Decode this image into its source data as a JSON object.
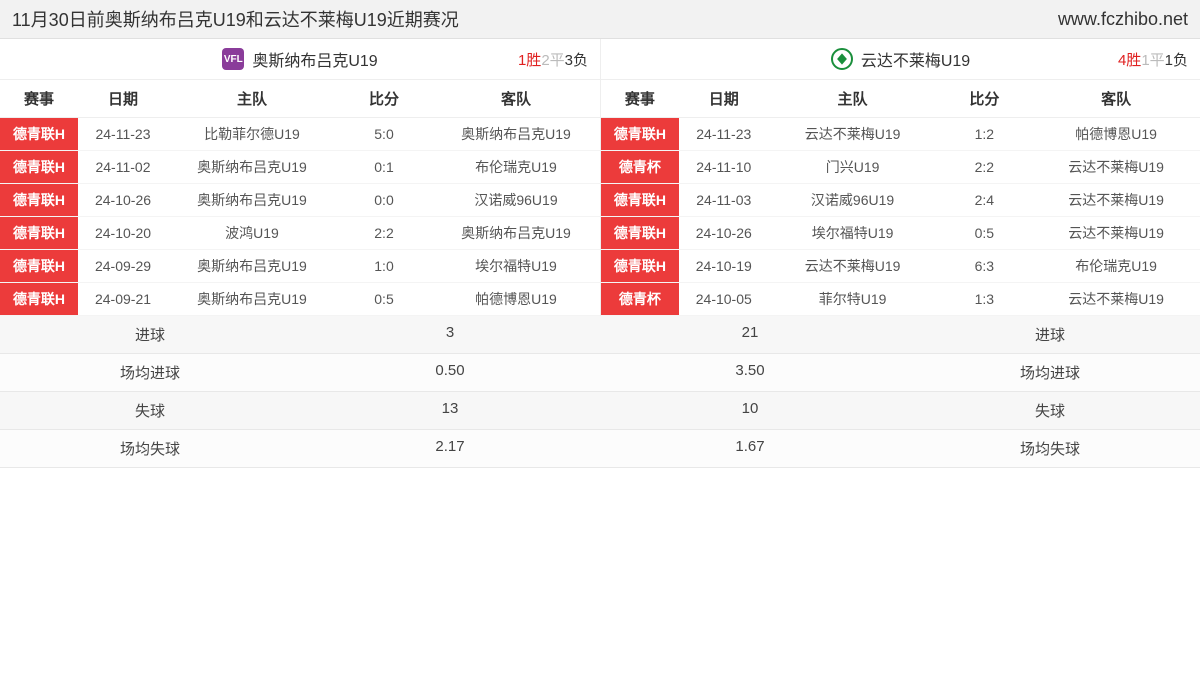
{
  "header": {
    "title": "11月30日前奥斯纳布吕克U19和云达不莱梅U19近期赛况",
    "site": "www.fczhibo.net"
  },
  "columns": [
    "赛事",
    "日期",
    "主队",
    "比分",
    "客队"
  ],
  "colors": {
    "comp_bg": "#ec3b3b",
    "comp_fg": "#ffffff",
    "win": "#e02020",
    "draw": "#bbbbbb",
    "loss": "#333333",
    "header_bg": "#f2f2f2"
  },
  "left": {
    "team": "奥斯纳布吕克U19",
    "logo_text": "VFL",
    "record": {
      "win_label": "1胜",
      "draw_label": "2平",
      "loss_label": "3负"
    },
    "matches": [
      {
        "comp": "德青联H",
        "date": "24-11-23",
        "home": "比勒菲尔德U19",
        "score": "5:0",
        "away": "奥斯纳布吕克U19"
      },
      {
        "comp": "德青联H",
        "date": "24-11-02",
        "home": "奥斯纳布吕克U19",
        "score": "0:1",
        "away": "布伦瑞克U19"
      },
      {
        "comp": "德青联H",
        "date": "24-10-26",
        "home": "奥斯纳布吕克U19",
        "score": "0:0",
        "away": "汉诺威96U19"
      },
      {
        "comp": "德青联H",
        "date": "24-10-20",
        "home": "波鸿U19",
        "score": "2:2",
        "away": "奥斯纳布吕克U19"
      },
      {
        "comp": "德青联H",
        "date": "24-09-29",
        "home": "奥斯纳布吕克U19",
        "score": "1:0",
        "away": "埃尔福特U19"
      },
      {
        "comp": "德青联H",
        "date": "24-09-21",
        "home": "奥斯纳布吕克U19",
        "score": "0:5",
        "away": "帕德博恩U19"
      }
    ],
    "stats": [
      {
        "label": "进球",
        "value": "3"
      },
      {
        "label": "场均进球",
        "value": "0.50"
      },
      {
        "label": "失球",
        "value": "13"
      },
      {
        "label": "场均失球",
        "value": "2.17"
      }
    ]
  },
  "right": {
    "team": "云达不莱梅U19",
    "record": {
      "win_label": "4胜",
      "draw_label": "1平",
      "loss_label": "1负"
    },
    "matches": [
      {
        "comp": "德青联H",
        "date": "24-11-23",
        "home": "云达不莱梅U19",
        "score": "1:2",
        "away": "帕德博恩U19"
      },
      {
        "comp": "德青杯",
        "date": "24-11-10",
        "home": "门兴U19",
        "score": "2:2",
        "away": "云达不莱梅U19"
      },
      {
        "comp": "德青联H",
        "date": "24-11-03",
        "home": "汉诺威96U19",
        "score": "2:4",
        "away": "云达不莱梅U19"
      },
      {
        "comp": "德青联H",
        "date": "24-10-26",
        "home": "埃尔福特U19",
        "score": "0:5",
        "away": "云达不莱梅U19"
      },
      {
        "comp": "德青联H",
        "date": "24-10-19",
        "home": "云达不莱梅U19",
        "score": "6:3",
        "away": "布伦瑞克U19"
      },
      {
        "comp": "德青杯",
        "date": "24-10-05",
        "home": "菲尔特U19",
        "score": "1:3",
        "away": "云达不莱梅U19"
      }
    ],
    "stats": [
      {
        "value": "21",
        "label": "进球"
      },
      {
        "value": "3.50",
        "label": "场均进球"
      },
      {
        "value": "10",
        "label": "失球"
      },
      {
        "value": "1.67",
        "label": "场均失球"
      }
    ]
  }
}
